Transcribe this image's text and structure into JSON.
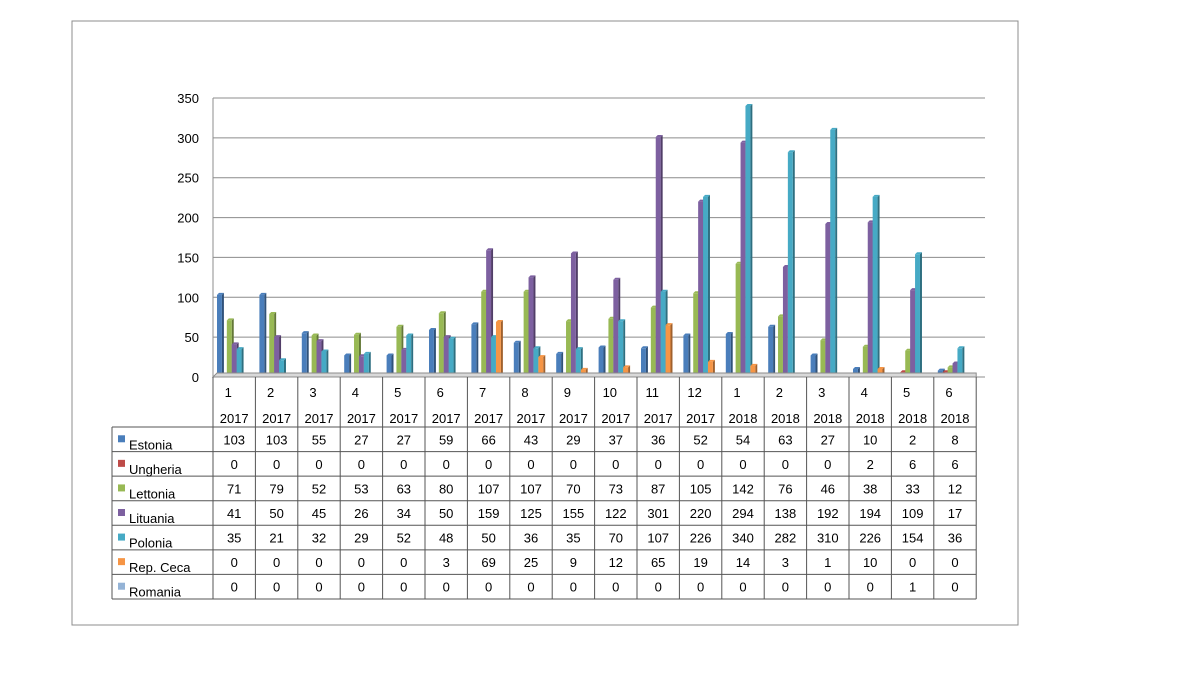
{
  "chart_data": {
    "type": "bar",
    "title": "",
    "xlabel": "",
    "ylabel": "",
    "ylim": [
      0,
      350
    ],
    "yticks": [
      0,
      50,
      100,
      150,
      200,
      250,
      300,
      350
    ],
    "grid": true,
    "legend_placement": "left of data table",
    "categories": [
      {
        "month": "1",
        "year": "2017"
      },
      {
        "month": "2",
        "year": "2017"
      },
      {
        "month": "3",
        "year": "2017"
      },
      {
        "month": "4",
        "year": "2017"
      },
      {
        "month": "5",
        "year": "2017"
      },
      {
        "month": "6",
        "year": "2017"
      },
      {
        "month": "7",
        "year": "2017"
      },
      {
        "month": "8",
        "year": "2017"
      },
      {
        "month": "9",
        "year": "2017"
      },
      {
        "month": "10",
        "year": "2017"
      },
      {
        "month": "11",
        "year": "2017"
      },
      {
        "month": "12",
        "year": "2017"
      },
      {
        "month": "1",
        "year": "2018"
      },
      {
        "month": "2",
        "year": "2018"
      },
      {
        "month": "3",
        "year": "2018"
      },
      {
        "month": "4",
        "year": "2018"
      },
      {
        "month": "5",
        "year": "2018"
      },
      {
        "month": "6",
        "year": "2018"
      }
    ],
    "series": [
      {
        "name": "Estonia",
        "color": "#4A7EBB",
        "values": [
          103,
          103,
          55,
          27,
          27,
          59,
          66,
          43,
          29,
          37,
          36,
          52,
          54,
          63,
          27,
          10,
          2,
          8
        ]
      },
      {
        "name": "Ungheria",
        "color": "#BE4B48",
        "values": [
          0,
          0,
          0,
          0,
          0,
          0,
          0,
          0,
          0,
          0,
          0,
          0,
          0,
          0,
          0,
          2,
          6,
          6
        ]
      },
      {
        "name": "Lettonia",
        "color": "#98B954",
        "values": [
          71,
          79,
          52,
          53,
          63,
          80,
          107,
          107,
          70,
          73,
          87,
          105,
          142,
          76,
          46,
          38,
          33,
          12
        ]
      },
      {
        "name": "Lituania",
        "color": "#7D60A0",
        "values": [
          41,
          50,
          45,
          26,
          34,
          50,
          159,
          125,
          155,
          122,
          301,
          220,
          294,
          138,
          192,
          194,
          109,
          17
        ]
      },
      {
        "name": "Polonia",
        "color": "#46AAC5",
        "values": [
          35,
          21,
          32,
          29,
          52,
          48,
          50,
          36,
          35,
          70,
          107,
          226,
          340,
          282,
          310,
          226,
          154,
          36
        ]
      },
      {
        "name": "Rep. Ceca",
        "color": "#F69545",
        "values": [
          0,
          0,
          0,
          0,
          0,
          3,
          69,
          25,
          9,
          12,
          65,
          19,
          14,
          3,
          1,
          10,
          0,
          0
        ]
      },
      {
        "name": "Romania",
        "color": "#94B3D6",
        "values": [
          0,
          0,
          0,
          0,
          0,
          0,
          0,
          0,
          0,
          0,
          0,
          0,
          0,
          0,
          0,
          0,
          1,
          0
        ]
      }
    ]
  }
}
